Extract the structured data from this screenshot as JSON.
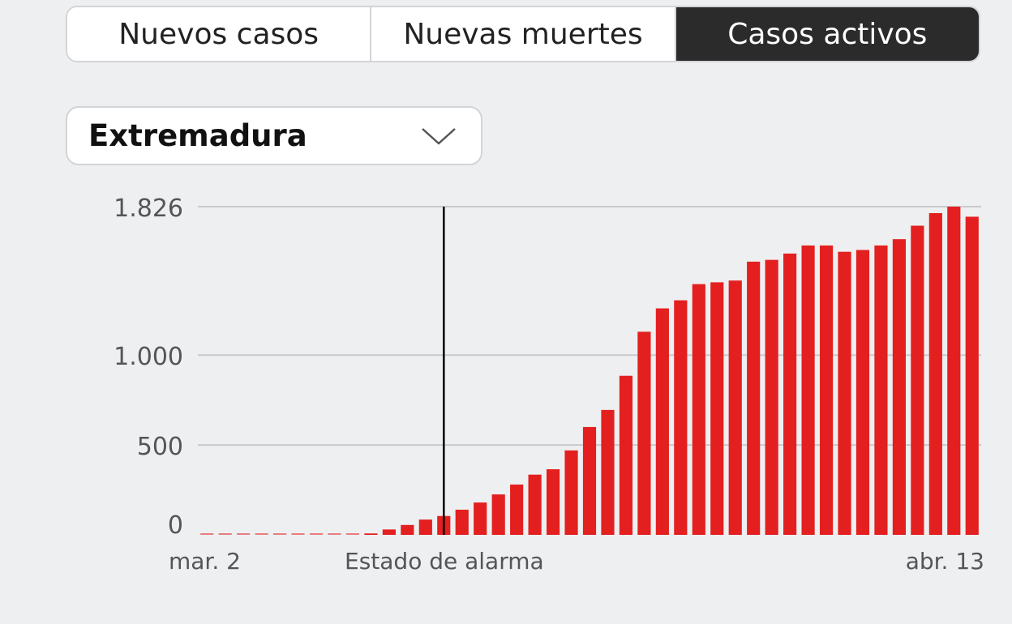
{
  "tabs": [
    {
      "label": "Nuevos casos",
      "active": false
    },
    {
      "label": "Nuevas muertes",
      "active": false
    },
    {
      "label": "Casos activos",
      "active": true
    }
  ],
  "region_select": {
    "value": "Extremadura",
    "icon": "chevron-down-icon"
  },
  "colors": {
    "bar": "#e3201f",
    "marker": "#000000",
    "grid": "#c9cacd",
    "active_tab": "#2b2b2b"
  },
  "chart_data": {
    "type": "bar",
    "ylim": [
      0,
      1826
    ],
    "y_ticks": [
      {
        "value": 0,
        "label": "0"
      },
      {
        "value": 500,
        "label": "500"
      },
      {
        "value": 1000,
        "label": "1.000"
      },
      {
        "value": 1826,
        "label": "1.826"
      }
    ],
    "x_labels": [
      {
        "index": 0,
        "label": "mar. 2"
      },
      {
        "index": 13,
        "label": "Estado de alarma"
      },
      {
        "index": 42,
        "label": "abr. 13"
      }
    ],
    "marker": {
      "index": 13,
      "label": "Estado de alarma"
    },
    "categories_start": "mar. 2",
    "categories_end": "abr. 13",
    "values": [
      0,
      0,
      0,
      0,
      0,
      0,
      0,
      0,
      0,
      8,
      30,
      55,
      85,
      105,
      140,
      180,
      225,
      280,
      335,
      365,
      470,
      600,
      695,
      885,
      1130,
      1260,
      1305,
      1395,
      1405,
      1415,
      1520,
      1530,
      1565,
      1610,
      1610,
      1575,
      1585,
      1610,
      1645,
      1720,
      1790,
      1826,
      1770
    ]
  }
}
